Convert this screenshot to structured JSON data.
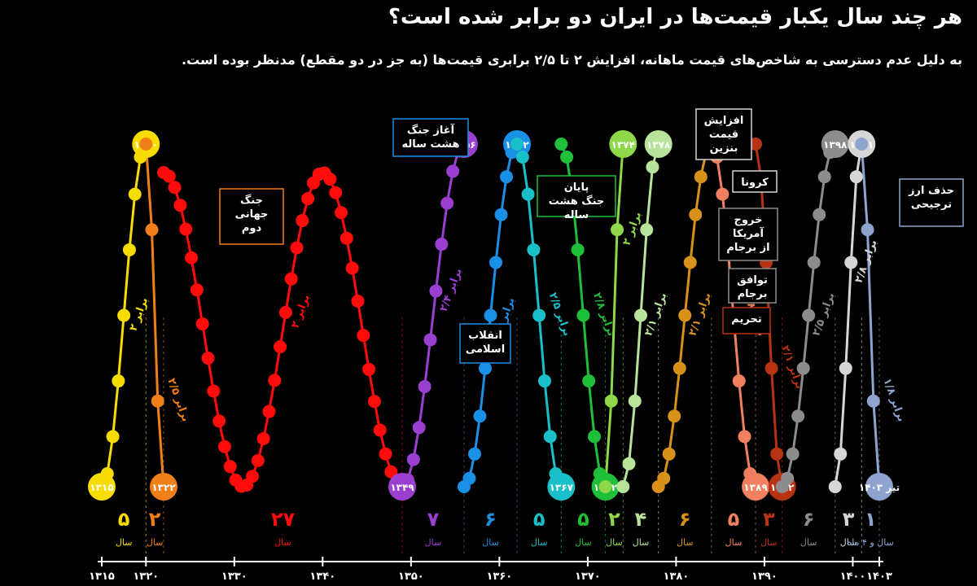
{
  "header": {
    "title": "هر چند سال یکبار قیمت‌ها در ایران دو برابر شده است؟",
    "subtitle": "به دلیل عدم دسترسی به شاخص‌های قیمت ماهانه، افزایش ۲ تا ۲/۵ برابری قیمت‌ها (به جز در دو مقطع) مدنظر بوده است."
  },
  "chart_data": {
    "type": "line",
    "title": "هر چند سال یکبار قیمت‌ها در ایران دو برابر شده است؟",
    "subtitle": "به دلیل عدم دسترسی به شاخص‌های قیمت ماهانه، افزایش ۲ تا ۲/۵ برابری قیمت‌ها (به جز در دو مقطع) مدنظر بوده است.",
    "xlabel": "",
    "ylabel": "",
    "xlim": [
      1315,
      1403
    ],
    "x_ticks": [
      {
        "value": 1315,
        "label": "۱۳۱۵"
      },
      {
        "value": 1320,
        "label": "۱۳۲۰"
      },
      {
        "value": 1330,
        "label": "۱۳۳۰"
      },
      {
        "value": 1340,
        "label": "۱۳۴۰"
      },
      {
        "value": 1350,
        "label": "۱۳۵۰"
      },
      {
        "value": 1360,
        "label": "۱۳۶۰"
      },
      {
        "value": 1370,
        "label": "۱۳۷۰"
      },
      {
        "value": 1380,
        "label": "۱۳۸۰"
      },
      {
        "value": 1390,
        "label": "۱۳۹۰"
      },
      {
        "value": 1400,
        "label": "۱۴۰۰"
      },
      {
        "value": 1403,
        "label": "۱۴۰۳"
      }
    ],
    "unit_label": "سال",
    "series": [
      {
        "color": "#f7dc00",
        "start": 1315,
        "end": 1320,
        "years": "۵",
        "multiplier": "۲ برابر",
        "direction": "up",
        "labeled": [
          {
            "x": 1315,
            "label": "۱۳۱۵"
          },
          {
            "x": 1320,
            "label": "۱۳۲۰"
          }
        ]
      },
      {
        "color": "#f07f1a",
        "start": 1320,
        "end": 1322,
        "years": "۲",
        "multiplier": "۲/۵ برابر",
        "direction": "down",
        "labeled": [
          {
            "x": 1322,
            "label": "۱۳۲۲"
          }
        ]
      },
      {
        "color": "#ff0b0b",
        "start": 1322,
        "end": 1349,
        "years": "۲۷",
        "multiplier": "۲ برابر",
        "direction": "full",
        "labeled": []
      },
      {
        "color": "#9a3fd0",
        "start": 1349,
        "end": 1356,
        "years": "۷",
        "multiplier": "۲/۴ برابر",
        "direction": "up",
        "labeled": [
          {
            "x": 1349,
            "label": "۱۳۴۹"
          },
          {
            "x": 1356,
            "label": "۱۳۵۶"
          }
        ]
      },
      {
        "color": "#1a8fe6",
        "start": 1356,
        "end": 1362,
        "years": "۶",
        "multiplier": "۳ برابر",
        "direction": "up",
        "labeled": [
          {
            "x": 1362,
            "label": "۱۳۶۲"
          }
        ]
      },
      {
        "color": "#19c0c9",
        "start": 1362,
        "end": 1367,
        "years": "۵",
        "multiplier": "۲/۵ برابر",
        "direction": "down",
        "labeled": [
          {
            "x": 1367,
            "label": "۱۳۶۷"
          }
        ]
      },
      {
        "color": "#1fbf3a",
        "start": 1367,
        "end": 1372,
        "years": "۵",
        "multiplier": "۲/۸ برابر",
        "direction": "down",
        "labeled": [
          {
            "x": 1372,
            "label": "۱۳۷۲"
          }
        ]
      },
      {
        "color": "#8fd84a",
        "start": 1372,
        "end": 1374,
        "years": "۲",
        "multiplier": "۲ برابر",
        "direction": "up",
        "labeled": [
          {
            "x": 1374,
            "label": "۱۳۷۴"
          }
        ]
      },
      {
        "color": "#b7e39a",
        "start": 1374,
        "end": 1378,
        "years": "۴",
        "multiplier": "۲/۱ برابر",
        "direction": "up",
        "labeled": [
          {
            "x": 1378,
            "label": "۱۳۷۸"
          }
        ]
      },
      {
        "color": "#d89119",
        "start": 1378,
        "end": 1384,
        "years": "۶",
        "multiplier": "۲/۱ برابر",
        "direction": "up",
        "labeled": [
          {
            "x": 1384,
            "label": "۱۳۸۴"
          }
        ]
      },
      {
        "color": "#f08060",
        "start": 1384,
        "end": 1389,
        "years": "۵",
        "multiplier": "۱/۸ برابر",
        "direction": "down",
        "labeled": [
          {
            "x": 1389,
            "label": "۱۳۸۹"
          }
        ]
      },
      {
        "color": "#b83214",
        "start": 1389,
        "end": 1392,
        "years": "۳",
        "multiplier": "۲/۱ برابر",
        "direction": "down",
        "labeled": [
          {
            "x": 1392,
            "label": "۱۳۹۲"
          }
        ]
      },
      {
        "color": "#8c8c8c",
        "start": 1392,
        "end": 1398,
        "years": "۶",
        "multiplier": "۲/۵ برابر",
        "direction": "up",
        "labeled": [
          {
            "x": 1398,
            "label": "۱۳۹۸"
          }
        ]
      },
      {
        "color": "#d6d6d6",
        "start": 1398,
        "end": 1401,
        "years": "۳",
        "multiplier": "۲/۸ برابر",
        "direction": "up",
        "labeled": [
          {
            "x": 1401,
            "label": "۱۴۰۱"
          }
        ]
      },
      {
        "color": "#8ea4cf",
        "start": 1401,
        "end": 1403,
        "years": "۱",
        "extra": "و ۴ ماه",
        "multiplier": "۱/۸ برابر",
        "direction": "down",
        "labeled": [
          {
            "x": 1403,
            "label": "تیر ۱۴۰۳"
          }
        ]
      }
    ],
    "annotations": [
      {
        "text": "جنگ جهانی دوم",
        "color": "#f07f1a"
      },
      {
        "text": "آغاز جنگ هشت ساله",
        "color": "#1a8fe6"
      },
      {
        "text": "پایان جنگ هشت ساله",
        "color": "#1fbf3a"
      },
      {
        "text": "انقلاب اسلامی",
        "color": "#1a8fe6"
      },
      {
        "text": "افزایش قیمت بنزین",
        "color": "#d6d6d6"
      },
      {
        "text": "کرونا",
        "color": "#d6d6d6"
      },
      {
        "text": "خروج آمریکا از برجام",
        "color": "#8c8c8c"
      },
      {
        "text": "توافق برجام",
        "color": "#8c8c8c"
      },
      {
        "text": "تحریم",
        "color": "#b83214"
      },
      {
        "text": "حذف ارز ترجیحی",
        "color": "#8ea4cf"
      }
    ]
  }
}
